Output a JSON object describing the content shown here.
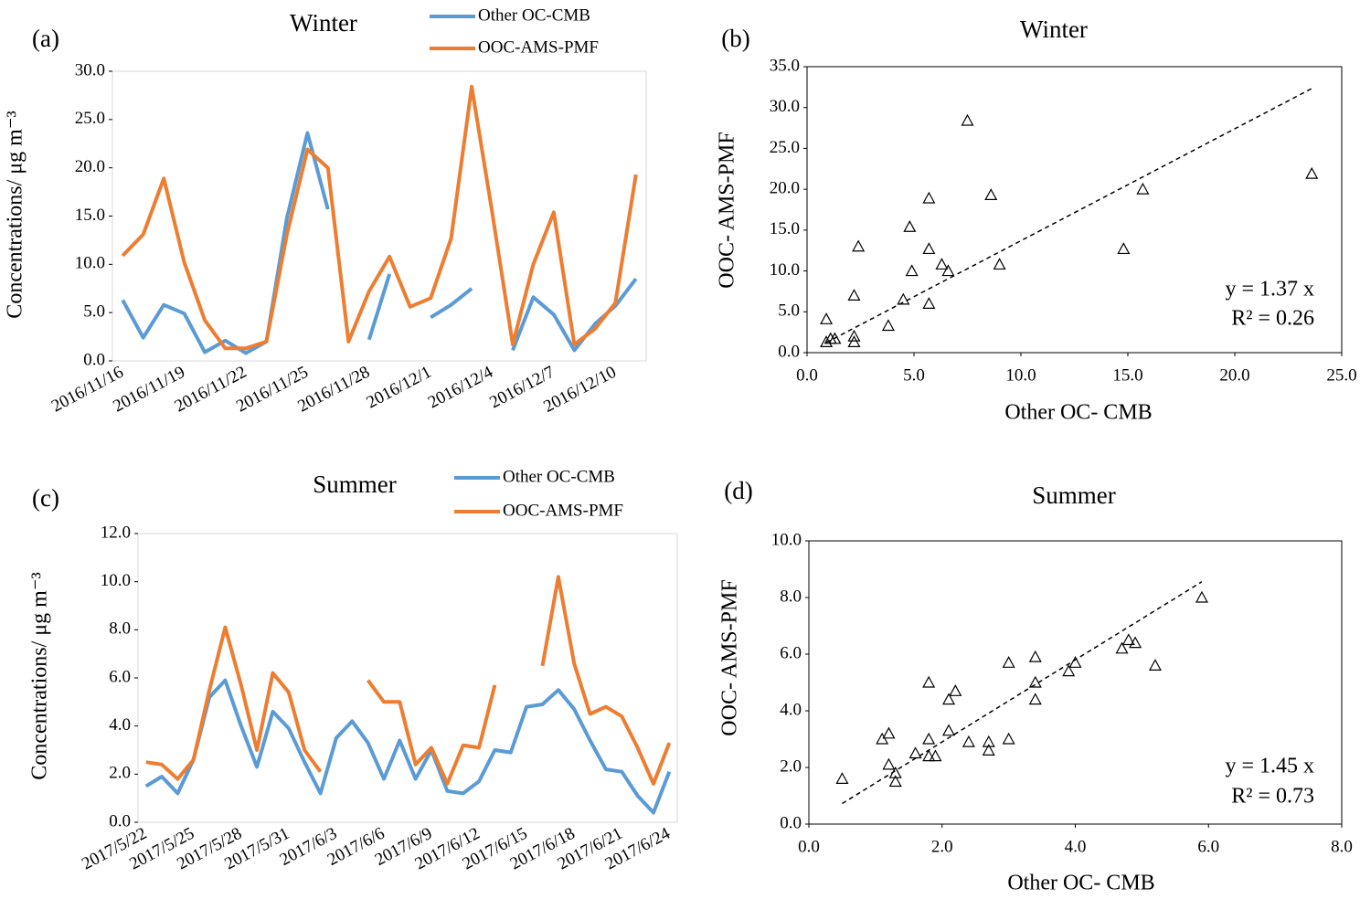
{
  "chart_data": [
    {
      "type": "line",
      "panel_label": "(a)",
      "title": "Winter",
      "y_label": "Concentrations/  μg m⁻³",
      "legend": "top",
      "grid": false,
      "categories": [
        "2016/11/16",
        null,
        null,
        "2016/11/19",
        null,
        null,
        "2016/11/22",
        null,
        null,
        "2016/11/25",
        null,
        null,
        "2016/11/28",
        null,
        null,
        "2016/12/1",
        null,
        null,
        "2016/12/4",
        null,
        null,
        "2016/12/7",
        null,
        null,
        "2016/12/10",
        null
      ],
      "series": [
        {
          "name": "Other OC-CMB",
          "color": "#5b9bd5",
          "values": [
            6.3,
            2.4,
            5.8,
            4.9,
            0.9,
            2.1,
            0.8,
            2.0,
            14.8,
            23.6,
            15.7,
            null,
            2.2,
            9.0,
            null,
            4.5,
            5.8,
            7.5,
            null,
            1.1,
            6.6,
            4.8,
            1.1,
            3.8,
            5.7,
            8.5
          ]
        },
        {
          "name": "OOC-AMS-PMF",
          "color": "#ed7d31",
          "values": [
            10.9,
            13.1,
            18.9,
            10.2,
            4.2,
            1.3,
            1.3,
            2.0,
            13.1,
            21.9,
            20.0,
            2.0,
            7.2,
            10.8,
            5.6,
            6.5,
            12.7,
            28.4,
            15.4,
            1.7,
            10.0,
            15.4,
            1.7,
            3.3,
            6.0,
            19.3
          ]
        }
      ],
      "ylim": [
        0,
        30
      ],
      "yticks": [
        {
          "value": 0,
          "label": "0.0"
        },
        {
          "value": 5,
          "label": "5.0"
        },
        {
          "value": 10,
          "label": "10.0"
        },
        {
          "value": 15,
          "label": "15.0"
        },
        {
          "value": 20,
          "label": "20.0"
        },
        {
          "value": 25,
          "label": "25.0"
        },
        {
          "value": 30,
          "label": "30.0"
        }
      ]
    },
    {
      "type": "scatter",
      "panel_label": "(b)",
      "title": "Winter",
      "x_label": "Other OC- CMB",
      "y_label": "OOC- AMS-PMF",
      "color": "#000000",
      "trendline_slope": 1.37,
      "annotations": [
        "y = 1.37 x",
        "R² = 0.26"
      ],
      "x": [
        0.9,
        0.9,
        1.1,
        1.3,
        2.2,
        2.2,
        2.2,
        2.4,
        3.8,
        4.5,
        4.8,
        4.9,
        5.7,
        5.7,
        5.7,
        6.3,
        6.6,
        7.5,
        8.6,
        9.0,
        14.8,
        15.7,
        23.6
      ],
      "y": [
        4.1,
        1.3,
        1.7,
        1.7,
        7.0,
        2.0,
        1.3,
        13.0,
        3.3,
        6.5,
        15.4,
        10.0,
        18.9,
        12.7,
        6.0,
        10.8,
        10.0,
        28.4,
        19.3,
        10.8,
        12.7,
        20.0,
        21.9
      ],
      "xlim": [
        0,
        25
      ],
      "ylim": [
        0,
        35
      ],
      "xticks": [
        {
          "value": 0,
          "label": "0.0"
        },
        {
          "value": 5,
          "label": "5.0"
        },
        {
          "value": 10,
          "label": "10.0"
        },
        {
          "value": 15,
          "label": "15.0"
        },
        {
          "value": 20,
          "label": "20.0"
        },
        {
          "value": 25,
          "label": "25.0"
        }
      ],
      "yticks": [
        {
          "value": 0,
          "label": "0.0"
        },
        {
          "value": 5,
          "label": "5.0"
        },
        {
          "value": 10,
          "label": "10.0"
        },
        {
          "value": 15,
          "label": "15.0"
        },
        {
          "value": 20,
          "label": "20.0"
        },
        {
          "value": 25,
          "label": "25.0"
        },
        {
          "value": 30,
          "label": "30.0"
        },
        {
          "value": 35,
          "label": "35.0"
        }
      ]
    },
    {
      "type": "line",
      "panel_label": "(c)",
      "title": "Summer",
      "y_label": "Concentrations/  μg m⁻³",
      "legend": "top",
      "grid": false,
      "categories": [
        "2017/5/22",
        null,
        null,
        "2017/5/25",
        null,
        null,
        "2017/5/28",
        null,
        null,
        "2017/5/31",
        null,
        null,
        "2017/6/3",
        null,
        null,
        "2017/6/6",
        null,
        null,
        "2017/6/9",
        null,
        null,
        "2017/6/12",
        null,
        null,
        "2017/6/15",
        null,
        null,
        "2017/6/18",
        null,
        null,
        "2017/6/21",
        null,
        null,
        "2017/6/24"
      ],
      "series": [
        {
          "name": "Other OC-CMB",
          "color": "#5b9bd5",
          "values": [
            1.5,
            1.9,
            1.2,
            2.6,
            5.2,
            5.9,
            4.0,
            2.3,
            4.6,
            3.9,
            2.5,
            1.2,
            3.5,
            4.2,
            3.3,
            1.8,
            3.4,
            1.8,
            3.0,
            1.3,
            1.2,
            1.7,
            3.0,
            2.9,
            4.8,
            4.9,
            5.5,
            4.7,
            3.4,
            2.2,
            2.1,
            1.1,
            0.4,
            2.1
          ]
        },
        {
          "name": "OOC-AMS-PMF",
          "color": "#ed7d31",
          "values": [
            2.5,
            2.4,
            1.8,
            2.6,
            5.5,
            8.1,
            5.7,
            3.0,
            6.2,
            5.4,
            3.0,
            2.1,
            null,
            null,
            5.9,
            5.0,
            5.0,
            2.4,
            3.1,
            1.6,
            3.2,
            3.1,
            5.7,
            null,
            null,
            6.5,
            10.2,
            6.6,
            4.5,
            4.8,
            4.4,
            3.1,
            1.6,
            3.3
          ]
        }
      ],
      "ylim": [
        0,
        12
      ],
      "yticks": [
        {
          "value": 0,
          "label": "0.0"
        },
        {
          "value": 2,
          "label": "2.0"
        },
        {
          "value": 4,
          "label": "4.0"
        },
        {
          "value": 6,
          "label": "6.0"
        },
        {
          "value": 8,
          "label": "8.0"
        },
        {
          "value": 10,
          "label": "10.0"
        },
        {
          "value": 12,
          "label": "12.0"
        }
      ]
    },
    {
      "type": "scatter",
      "panel_label": "(d)",
      "title": "Summer",
      "x_label": "Other OC- CMB",
      "y_label": "OOC- AMS-PMF",
      "color": "#000000",
      "trendline_slope": 1.45,
      "annotations": [
        "y = 1.45 x",
        "R² = 0.73"
      ],
      "x": [
        0.5,
        1.1,
        1.2,
        1.2,
        1.3,
        1.3,
        1.6,
        1.8,
        1.8,
        1.8,
        1.9,
        2.1,
        2.1,
        2.2,
        2.4,
        2.7,
        2.7,
        3.0,
        3.0,
        3.4,
        3.4,
        3.4,
        3.9,
        4.0,
        4.7,
        4.8,
        4.9,
        5.2,
        5.9
      ],
      "y": [
        1.6,
        3.0,
        3.2,
        2.1,
        1.8,
        1.5,
        2.5,
        3.0,
        2.4,
        5.0,
        2.4,
        3.3,
        4.4,
        4.7,
        2.9,
        2.6,
        2.9,
        5.7,
        3.0,
        4.4,
        5.0,
        5.9,
        5.4,
        5.7,
        6.2,
        6.5,
        6.4,
        5.6,
        8.0
      ],
      "xlim": [
        0,
        8
      ],
      "ylim": [
        0,
        10
      ],
      "xticks": [
        {
          "value": 0,
          "label": "0.0"
        },
        {
          "value": 2,
          "label": "2.0"
        },
        {
          "value": 4,
          "label": "4.0"
        },
        {
          "value": 6,
          "label": "6.0"
        },
        {
          "value": 8,
          "label": "8.0"
        }
      ],
      "yticks": [
        {
          "value": 0,
          "label": "0.0"
        },
        {
          "value": 2,
          "label": "2.0"
        },
        {
          "value": 4,
          "label": "4.0"
        },
        {
          "value": 6,
          "label": "6.0"
        },
        {
          "value": 8,
          "label": "8.0"
        },
        {
          "value": 10,
          "label": "10.0"
        }
      ]
    }
  ]
}
